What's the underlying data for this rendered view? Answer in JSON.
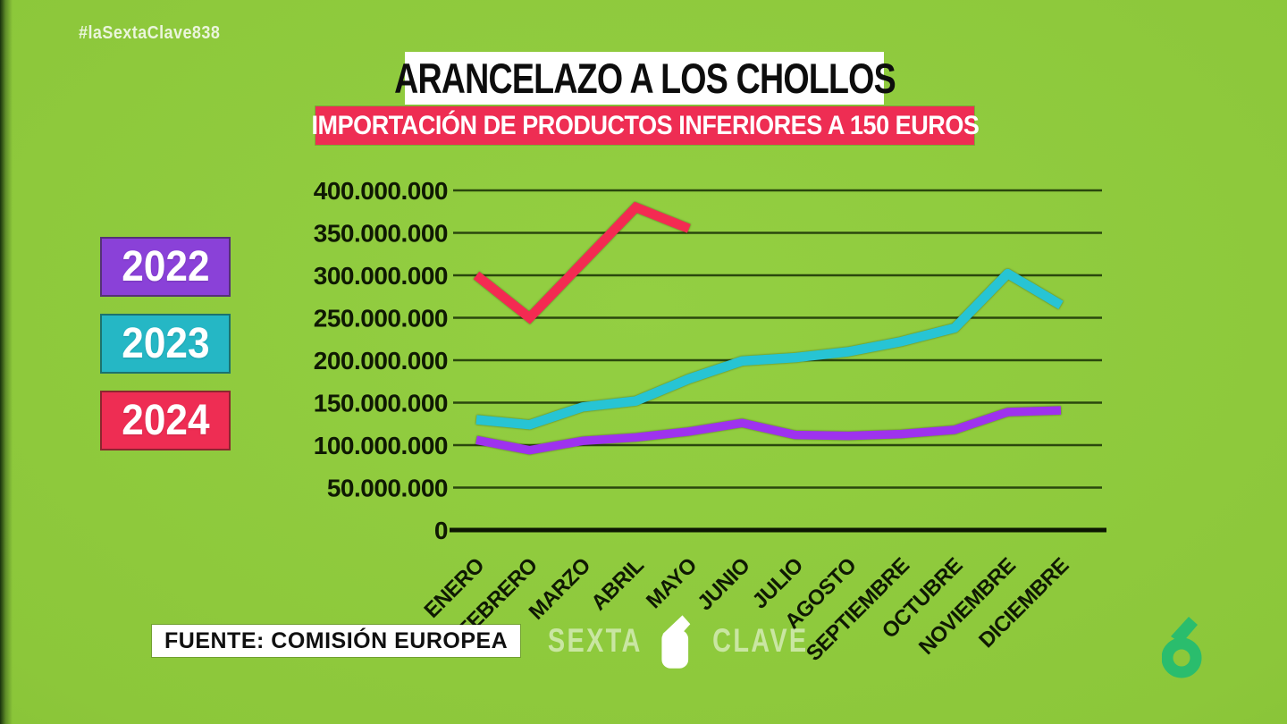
{
  "meta": {
    "hashtag": "#laSextaClave838"
  },
  "header": {
    "title": "ARANCELAZO A LOS CHOLLOS",
    "subtitle": "IMPORTACIÓN DE PRODUCTOS INFERIORES A 150 EUROS"
  },
  "legend": [
    {
      "label": "2022",
      "color": "#8a41d8"
    },
    {
      "label": "2023",
      "color": "#25b7c5"
    },
    {
      "label": "2024",
      "color": "#ee2d53"
    }
  ],
  "footer": {
    "source": "FUENTE: COMISIÓN EUROPEA",
    "program_logo_left": "SEXTA",
    "program_logo_right": "CLAVE"
  },
  "branding": {
    "channel_logo": "laSexta-6",
    "channel_logo_color": "#2abd6d"
  },
  "chart_data": {
    "type": "line",
    "title": "ARANCELAZO A LOS CHOLLOS",
    "subtitle": "IMPORTACIÓN DE PRODUCTOS INFERIORES A 150 EUROS",
    "xlabel": "",
    "ylabel": "",
    "ylim": [
      0,
      400000000
    ],
    "grid": true,
    "legend_position": "left",
    "categories": [
      "ENERO",
      "FEBRERO",
      "MARZO",
      "ABRIL",
      "MAYO",
      "JUNIO",
      "JULIO",
      "AGOSTO",
      "SEPTIEMBRE",
      "OCTUBRE",
      "NOVIEMBRE",
      "DICIEMBRE"
    ],
    "y_ticks": {
      "values": [
        0,
        50000000,
        100000000,
        150000000,
        200000000,
        250000000,
        300000000,
        350000000,
        400000000
      ],
      "labels": [
        "0",
        "50.000.000",
        "100.000.000",
        "150.000.000",
        "200.000.000",
        "250.000.000",
        "300.000.000",
        "350.000.000",
        "400.000.000"
      ]
    },
    "series": [
      {
        "name": "2022",
        "color": "#9e32ee",
        "values": [
          106000000,
          94000000,
          105000000,
          109000000,
          116000000,
          126000000,
          112000000,
          111000000,
          113000000,
          118000000,
          139000000,
          141000000
        ]
      },
      {
        "name": "2023",
        "color": "#27c4d4",
        "values": [
          130000000,
          124000000,
          145000000,
          152000000,
          178000000,
          199000000,
          203000000,
          210000000,
          222000000,
          238000000,
          302000000,
          265000000
        ]
      },
      {
        "name": "2024",
        "color": "#f42a52",
        "values": [
          300000000,
          250000000,
          315000000,
          380000000,
          355000000,
          null,
          null,
          null,
          null,
          null,
          null,
          null
        ]
      }
    ]
  }
}
